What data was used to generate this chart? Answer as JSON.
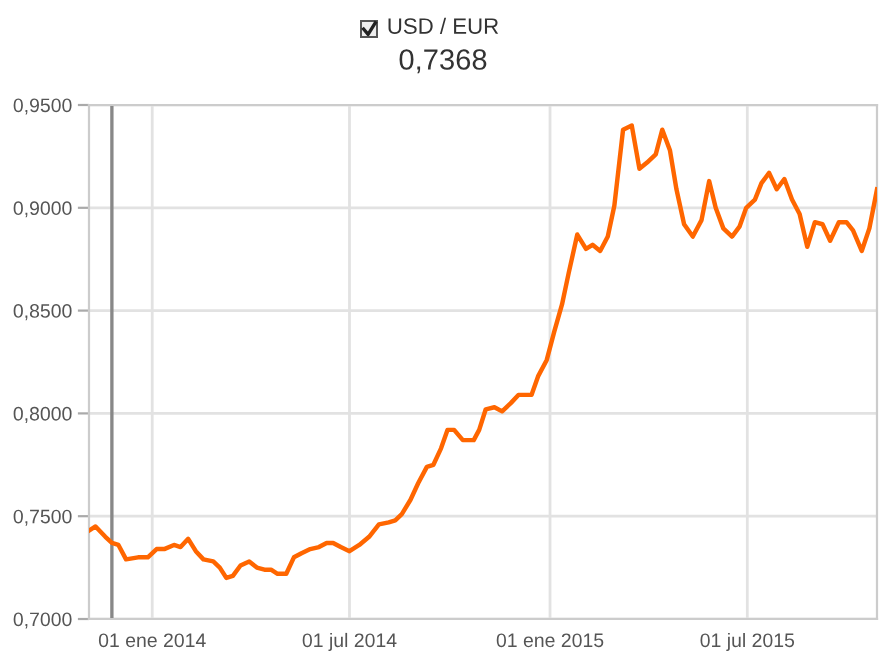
{
  "chart_data": {
    "type": "line",
    "title": "USD / EUR",
    "subtitle": "0,7368",
    "x": [
      "2013-11-04",
      "2013-11-10",
      "2013-11-19",
      "2013-11-25",
      "2013-12-01",
      "2013-12-08",
      "2013-12-19",
      "2013-12-28",
      "2014-01-05",
      "2014-01-12",
      "2014-01-21",
      "2014-01-27",
      "2014-02-03",
      "2014-02-10",
      "2014-02-17",
      "2014-02-26",
      "2014-03-04",
      "2014-03-10",
      "2014-03-16",
      "2014-03-23",
      "2014-03-31",
      "2014-04-07",
      "2014-04-14",
      "2014-04-20",
      "2014-04-26",
      "2014-05-04",
      "2014-05-11",
      "2014-05-18",
      "2014-05-26",
      "2014-06-03",
      "2014-06-10",
      "2014-06-16",
      "2014-06-23",
      "2014-07-01",
      "2014-07-10",
      "2014-07-19",
      "2014-07-28",
      "2014-08-06",
      "2014-08-12",
      "2014-08-18",
      "2014-08-26",
      "2014-09-02",
      "2014-09-10",
      "2014-09-16",
      "2014-09-23",
      "2014-09-29",
      "2014-10-05",
      "2014-10-13",
      "2014-10-20",
      "2014-10-23",
      "2014-10-28",
      "2014-11-03",
      "2014-11-11",
      "2014-11-18",
      "2014-11-26",
      "2014-12-03",
      "2014-12-15",
      "2014-12-21",
      "2014-12-29",
      "2015-01-05",
      "2015-01-12",
      "2015-01-18",
      "2015-01-26",
      "2015-02-03",
      "2015-02-09",
      "2015-02-16",
      "2015-02-23",
      "2015-03-01",
      "2015-03-09",
      "2015-03-17",
      "2015-03-24",
      "2015-03-31",
      "2015-04-08",
      "2015-04-14",
      "2015-04-21",
      "2015-04-27",
      "2015-05-04",
      "2015-05-12",
      "2015-05-20",
      "2015-05-27",
      "2015-06-02",
      "2015-06-09",
      "2015-06-17",
      "2015-06-24",
      "2015-06-30",
      "2015-07-08",
      "2015-07-14",
      "2015-07-21",
      "2015-07-28",
      "2015-08-04",
      "2015-08-11",
      "2015-08-18",
      "2015-08-25",
      "2015-09-01",
      "2015-09-08",
      "2015-09-15",
      "2015-09-23",
      "2015-09-30",
      "2015-10-06",
      "2015-10-14",
      "2015-10-21",
      "2015-10-28"
    ],
    "series": [
      {
        "color": "#ff6600",
        "values": [
          0.743,
          0.745,
          0.74,
          0.737,
          0.736,
          0.729,
          0.73,
          0.73,
          0.734,
          0.734,
          0.736,
          0.735,
          0.739,
          0.733,
          0.729,
          0.728,
          0.725,
          0.72,
          0.721,
          0.726,
          0.728,
          0.725,
          0.724,
          0.724,
          0.722,
          0.722,
          0.73,
          0.732,
          0.734,
          0.735,
          0.737,
          0.737,
          0.735,
          0.733,
          0.736,
          0.74,
          0.746,
          0.747,
          0.748,
          0.751,
          0.758,
          0.766,
          0.774,
          0.775,
          0.783,
          0.792,
          0.792,
          0.787,
          0.787,
          0.787,
          0.792,
          0.802,
          0.803,
          0.801,
          0.805,
          0.809,
          0.809,
          0.818,
          0.826,
          0.84,
          0.853,
          0.868,
          0.887,
          0.88,
          0.882,
          0.879,
          0.886,
          0.901,
          0.938,
          0.94,
          0.919,
          0.922,
          0.926,
          0.938,
          0.928,
          0.909,
          0.892,
          0.886,
          0.894,
          0.913,
          0.9,
          0.89,
          0.886,
          0.891,
          0.9,
          0.904,
          0.912,
          0.917,
          0.909,
          0.914,
          0.904,
          0.897,
          0.881,
          0.893,
          0.892,
          0.884,
          0.893,
          0.893,
          0.889,
          0.879,
          0.89,
          0.909
        ]
      }
    ],
    "ref_lines": [
      {
        "axis": "x",
        "value": "2013-11-25",
        "color": "#888888"
      }
    ],
    "xlim": [
      "2013-11-04",
      "2015-10-28"
    ],
    "xticks": [
      {
        "value": "2014-01-01",
        "label": "01 ene 2014"
      },
      {
        "value": "2014-07-01",
        "label": "01 jul 2014"
      },
      {
        "value": "2015-01-01",
        "label": "01 ene 2015"
      },
      {
        "value": "2015-07-01",
        "label": "01 jul 2015"
      }
    ],
    "ylim": [
      0.7,
      0.95
    ],
    "yticks": [
      {
        "value": 0.7,
        "label": "0,7000"
      },
      {
        "value": 0.75,
        "label": "0,7500"
      },
      {
        "value": 0.8,
        "label": "0,8000"
      },
      {
        "value": 0.85,
        "label": "0,8500"
      },
      {
        "value": 0.9,
        "label": "0,9000"
      },
      {
        "value": 0.95,
        "label": "0,9500"
      }
    ],
    "grid": true,
    "marker": "none",
    "line_style": "solid"
  }
}
